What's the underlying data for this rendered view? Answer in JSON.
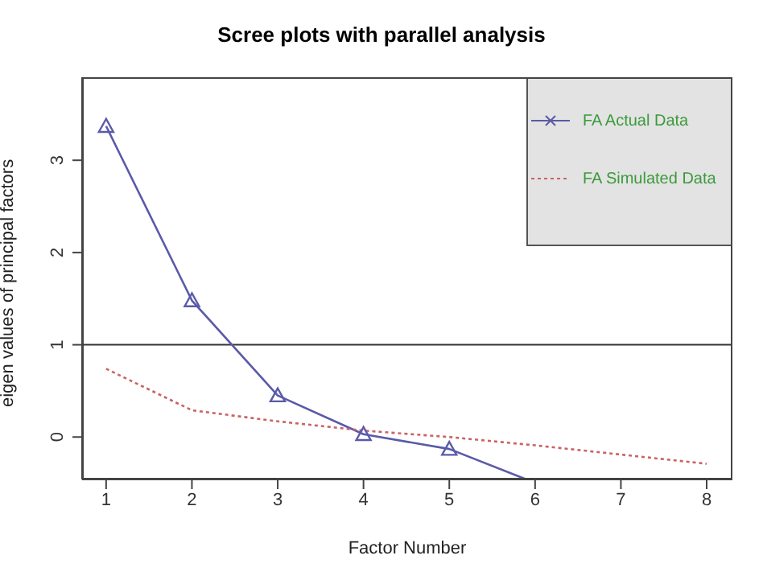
{
  "chart_data": {
    "type": "line",
    "title": "Scree plots with parallel analysis",
    "xlabel": "Factor Number",
    "ylabel": "eigen values of principal factors",
    "x": [
      1,
      2,
      3,
      4,
      5,
      6,
      7,
      8
    ],
    "series": [
      {
        "name": "FA  Actual Data",
        "color": "#5a5aa8",
        "x": [
          1,
          2,
          3,
          4,
          5,
          5.9
        ],
        "values": [
          3.37,
          1.48,
          0.45,
          0.03,
          -0.13,
          -0.46
        ],
        "marker": "triangle",
        "line_style": "solid"
      },
      {
        "name": "FA  Simulated Data",
        "color": "#c86464",
        "values": [
          0.74,
          0.29,
          0.17,
          0.07,
          0.0,
          -0.09,
          -0.19,
          -0.29
        ],
        "marker": "none",
        "line_style": "dotted"
      }
    ],
    "xlim": [
      0.72,
      8.3
    ],
    "xticks": [
      1,
      2,
      3,
      4,
      5,
      6,
      7,
      8
    ],
    "ylim": [
      -0.46,
      3.9
    ],
    "yticks": [
      0,
      1,
      2,
      3
    ],
    "ref_lines": [
      {
        "axis": "y",
        "value": 1,
        "color": "#333333"
      }
    ],
    "grid": false,
    "legend": "top right"
  }
}
